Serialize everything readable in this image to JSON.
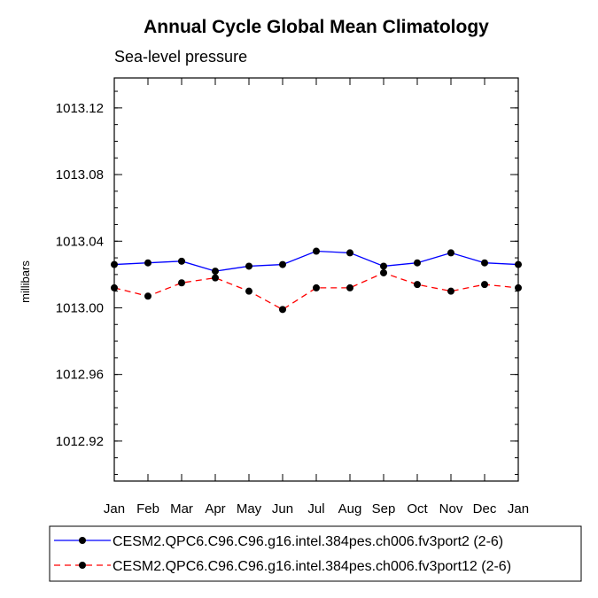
{
  "chart_data": {
    "type": "line",
    "title": "Annual Cycle Global Mean Climatology",
    "subtitle": "Sea-level pressure",
    "xlabel": "",
    "ylabel": "millibars",
    "categories": [
      "Jan",
      "Feb",
      "Mar",
      "Apr",
      "May",
      "Jun",
      "Jul",
      "Aug",
      "Sep",
      "Oct",
      "Nov",
      "Dec",
      "Jan"
    ],
    "ylim": [
      1012.896,
      1013.138
    ],
    "yticks": [
      1012.92,
      1012.96,
      1013.0,
      1013.04,
      1013.08,
      1013.12
    ],
    "ytick_labels": [
      "1012.92",
      "1012.96",
      "1013.00",
      "1013.04",
      "1013.08",
      "1013.12"
    ],
    "series": [
      {
        "name": "CESM2.QPC6.C96.C96.g16.intel.384pes.ch006.fv3port2 (2-6)",
        "color": "#0000ff",
        "dash": "solid",
        "values": [
          1013.026,
          1013.027,
          1013.028,
          1013.022,
          1013.025,
          1013.026,
          1013.034,
          1013.033,
          1013.025,
          1013.027,
          1013.033,
          1013.027,
          1013.026
        ]
      },
      {
        "name": "CESM2.QPC6.C96.C96.g16.intel.384pes.ch006.fv3port12 (2-6)",
        "color": "#ff0000",
        "dash": "dashed",
        "values": [
          1013.012,
          1013.007,
          1013.015,
          1013.018,
          1013.01,
          1012.999,
          1013.012,
          1013.012,
          1013.021,
          1013.014,
          1013.01,
          1013.014,
          1013.012
        ]
      }
    ]
  }
}
